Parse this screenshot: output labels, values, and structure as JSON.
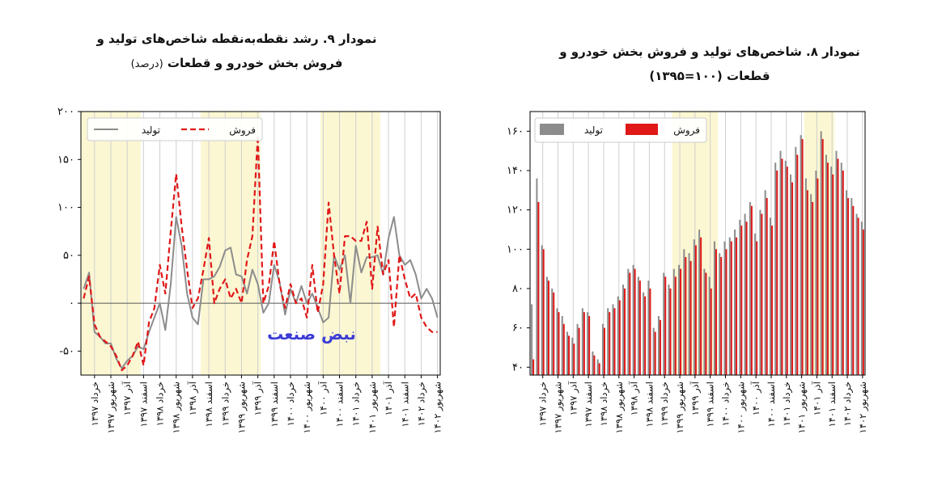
{
  "watermark": "نبض صنعت",
  "chart_data": [
    {
      "id": "fig9",
      "type": "line",
      "title_line1": "نمودار ۹. رشد نقطه‌به‌نقطه شاخص‌های تولید و",
      "title_line2": "فروش بخش خودرو و قطعات",
      "title_unit": "(درصد)",
      "ylim": [
        -75,
        200
      ],
      "yticks": [
        -50,
        0,
        50,
        100,
        150,
        200
      ],
      "ytick_labels": [
        "-۵۰",
        "۰",
        "۵۰",
        "۱۰۰",
        "۱۵۰",
        "۲۰۰"
      ],
      "n_points": 66,
      "x_labels": [
        "خرداد ۱۳۹۷",
        "شهریور ۱۳۹۷",
        "آذر ۱۳۹۷",
        "اسفند ۱۳۹۷",
        "خرداد ۱۳۹۸",
        "شهریور ۱۳۹۸",
        "آذر ۱۳۹۸",
        "اسفند ۱۳۹۸",
        "خرداد ۱۳۹۹",
        "شهریور ۱۳۹۹",
        "آذر ۱۳۹۹",
        "اسفند ۱۳۹۹",
        "خرداد ۱۴۰۰",
        "شهریور ۱۴۰۰",
        "آذر ۱۴۰۰",
        "اسفند ۱۴۰۰",
        "خرداد ۱۴۰۱",
        "شهریور ۱۴۰۱",
        "آذر ۱۴۰۱",
        "اسفند ۱۴۰۱",
        "خرداد ۱۴۰۲",
        "شهریور ۱۴۰۲"
      ],
      "shaded_ranges": [
        [
          0,
          11
        ],
        [
          22,
          33
        ],
        [
          44,
          55
        ]
      ],
      "legend": [
        {
          "label": "تولید",
          "color": "#8c8c8c",
          "style": "solid"
        },
        {
          "label": "فروش",
          "color": "#e01818",
          "style": "dashed"
        }
      ],
      "series": [
        {
          "name": "تولید",
          "color": "#8c8c8c",
          "values": [
            15,
            32,
            -30,
            -35,
            -42,
            -42,
            -58,
            -68,
            -60,
            -55,
            -45,
            -48,
            -30,
            -15,
            0,
            -28,
            20,
            90,
            60,
            10,
            -15,
            -22,
            25,
            25,
            28,
            38,
            55,
            58,
            30,
            28,
            10,
            35,
            20,
            -10,
            0,
            40,
            22,
            -12,
            15,
            0,
            18,
            0,
            10,
            -5,
            -20,
            -15,
            50,
            35,
            50,
            0,
            60,
            32,
            48,
            48,
            50,
            30,
            68,
            90,
            50,
            40,
            45,
            30,
            5,
            15,
            5,
            -15
          ]
        },
        {
          "name": "فروش",
          "color": "#e01818",
          "values": [
            5,
            28,
            -22,
            -35,
            -40,
            -45,
            -55,
            -70,
            -65,
            -55,
            -40,
            -65,
            -20,
            -5,
            40,
            10,
            75,
            135,
            80,
            35,
            -5,
            5,
            35,
            68,
            0,
            15,
            25,
            5,
            15,
            0,
            45,
            70,
            175,
            0,
            18,
            65,
            20,
            -5,
            20,
            0,
            5,
            -15,
            40,
            -10,
            20,
            105,
            50,
            10,
            70,
            70,
            65,
            65,
            85,
            15,
            80,
            30,
            45,
            -25,
            50,
            25,
            5,
            10,
            -15,
            -25,
            -30,
            -30
          ]
        }
      ]
    },
    {
      "id": "fig8",
      "type": "bar",
      "title_line1": "نمودار ۸. شاخص‌های تولید و فروش بخش خودرو و",
      "title_line2": "قطعات (۱۰۰=۱۳۹۵)",
      "ylim": [
        36,
        170
      ],
      "yticks": [
        40,
        60,
        80,
        100,
        120,
        140,
        160
      ],
      "ytick_labels": [
        "۴۰",
        "۶۰",
        "۸۰",
        "۱۰۰",
        "۱۲۰",
        "۱۴۰",
        "۱۶۰"
      ],
      "n_points": 66,
      "x_labels": [
        "خرداد ۱۳۹۷",
        "شهریور ۱۳۹۷",
        "آذر ۱۳۹۷",
        "اسفند ۱۳۹۷",
        "خرداد ۱۳۹۸",
        "شهریور ۱۳۹۸",
        "آذر ۱۳۹۸",
        "اسفند ۱۳۹۸",
        "خرداد ۱۳۹۹",
        "شهریور ۱۳۹۹",
        "آذر ۱۳۹۹",
        "اسفند ۱۳۹۹",
        "خرداد ۱۴۰۰",
        "شهریور ۱۴۰۰",
        "آذر ۱۴۰۰",
        "اسفند ۱۴۰۰",
        "خرداد ۱۴۰۱",
        "شهریور ۱۴۰۱",
        "آذر ۱۴۰۱",
        "اسفند ۱۴۰۱",
        "خرداد ۱۴۰۲",
        "شهریور ۱۴۰۲"
      ],
      "shaded_ranges": [
        [
          28,
          37
        ],
        [
          54,
          60
        ]
      ],
      "legend": [
        {
          "label": "تولید",
          "color": "#8c8c8c"
        },
        {
          "label": "فروش",
          "color": "#e01818"
        }
      ],
      "series": [
        {
          "name": "تولید",
          "color": "#8c8c8c",
          "values": [
            72,
            136,
            102,
            86,
            80,
            70,
            66,
            58,
            55,
            62,
            70,
            68,
            48,
            44,
            62,
            70,
            72,
            76,
            82,
            90,
            92,
            86,
            78,
            84,
            60,
            66,
            88,
            82,
            90,
            92,
            100,
            98,
            105,
            110,
            90,
            86,
            104,
            98,
            104,
            106,
            110,
            115,
            118,
            124,
            108,
            120,
            130,
            116,
            144,
            150,
            145,
            138,
            152,
            158,
            136,
            128,
            140,
            160,
            148,
            142,
            150,
            144,
            130,
            126,
            118,
            114
          ]
        },
        {
          "name": "فروش",
          "color": "#e01818",
          "values": [
            44,
            124,
            100,
            84,
            78,
            68,
            62,
            56,
            52,
            60,
            68,
            66,
            46,
            42,
            60,
            68,
            70,
            74,
            80,
            88,
            90,
            84,
            76,
            80,
            58,
            64,
            86,
            80,
            86,
            90,
            96,
            94,
            102,
            106,
            88,
            80,
            100,
            96,
            100,
            104,
            106,
            112,
            114,
            122,
            104,
            118,
            126,
            112,
            140,
            146,
            142,
            134,
            148,
            156,
            130,
            124,
            136,
            156,
            144,
            138,
            146,
            140,
            126,
            122,
            116,
            110
          ]
        }
      ]
    }
  ]
}
